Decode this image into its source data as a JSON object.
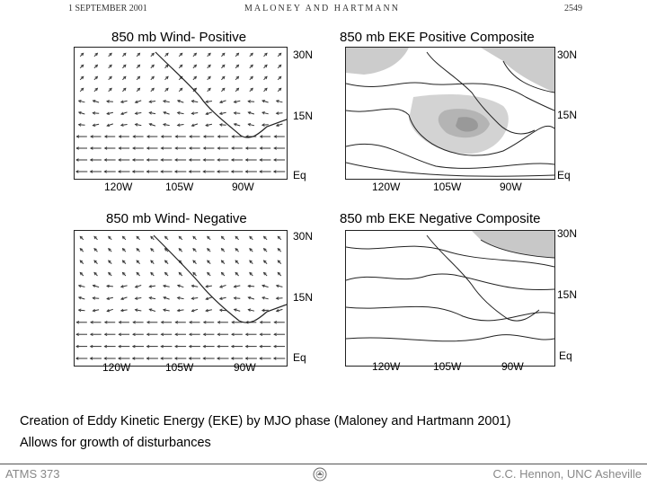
{
  "header": {
    "date": "1 SEPTEMBER 2001",
    "authors": "MALONEY AND HARTMANN",
    "page": "2549"
  },
  "panels": {
    "wind_pos_title": "850 mb Wind- Positive",
    "eke_pos_title": "850 mb EKE Positive Composite",
    "wind_neg_title": "850 mb Wind- Negative",
    "eke_neg_title": "850 mb EKE  Negative Composite"
  },
  "labels": {
    "lat_30": "30N",
    "lat_15": "15N",
    "lat_eq": "Eq",
    "lon_120": "120W",
    "lon_105": "105W",
    "lon_90": "90W"
  },
  "caption": {
    "line1": "Creation of Eddy Kinetic Energy (EKE) by MJO phase (Maloney and Hartmann 2001)",
    "line2": "Allows for growth of disturbances"
  },
  "footer": {
    "left": "ATMS 373",
    "right": "C.C. Hennon, UNC Asheville",
    "logo_icon": "university-seal-icon"
  }
}
